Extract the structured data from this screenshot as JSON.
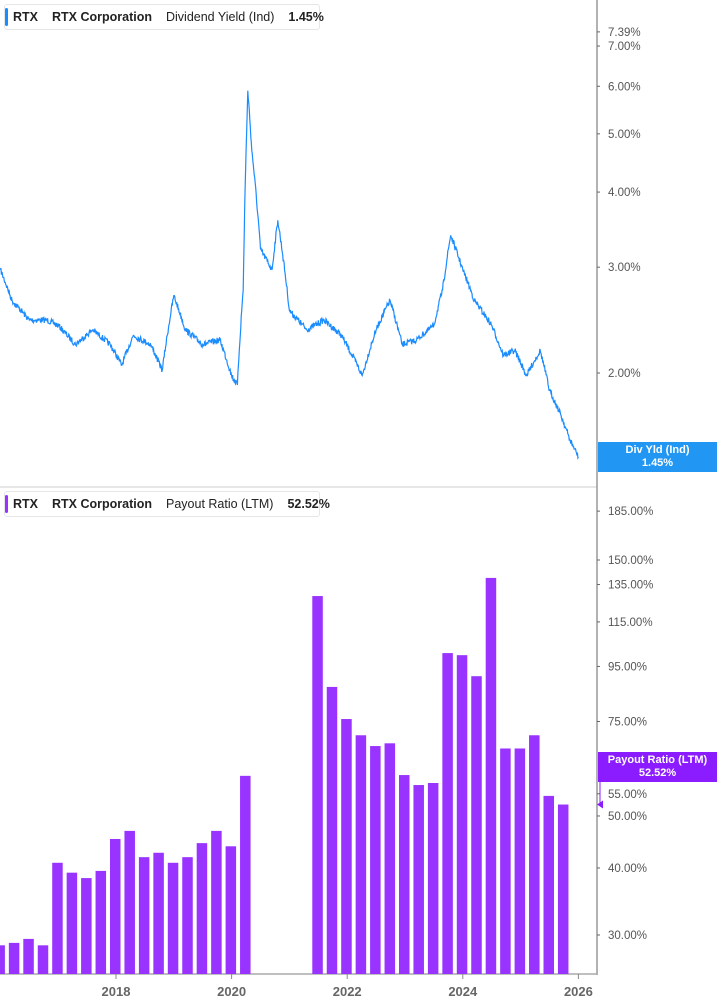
{
  "colors": {
    "yield": "#1a8cff",
    "payout": "#9933ff",
    "yield_tag": "#2196f3",
    "payout_tag": "#8a1cff"
  },
  "chart_data": [
    {
      "type": "line",
      "legend": {
        "ticker": "RTX",
        "company": "RTX Corporation",
        "metric": "Dividend Yield (Ind)",
        "value": "1.45%"
      },
      "tag": {
        "label": "Div Yld (Ind)",
        "value": "1.45%"
      },
      "y_scale": "log",
      "ylim": [
        1.4,
        7.6
      ],
      "yticks": [
        "7.39%",
        "7.00%",
        "6.00%",
        "5.00%",
        "4.00%",
        "3.00%",
        "2.00%"
      ],
      "ytick_values": [
        7.39,
        7.0,
        6.0,
        5.0,
        4.0,
        3.0,
        2.0
      ],
      "x": [
        2016.0,
        2016.2,
        2016.5,
        2016.8,
        2017.0,
        2017.3,
        2017.6,
        2017.9,
        2018.1,
        2018.3,
        2018.6,
        2018.8,
        2019.0,
        2019.2,
        2019.5,
        2019.8,
        2020.0,
        2020.1,
        2020.2,
        2020.26,
        2020.28,
        2020.35,
        2020.5,
        2020.7,
        2020.8,
        2021.0,
        2021.3,
        2021.6,
        2021.9,
        2022.26,
        2022.5,
        2022.74,
        2022.95,
        2023.2,
        2023.5,
        2023.65,
        2023.79,
        2024.0,
        2024.2,
        2024.5,
        2024.7,
        2024.9,
        2025.1,
        2025.34,
        2025.5,
        2025.7,
        2025.85,
        2026.0
      ],
      "values": [
        2.97,
        2.64,
        2.45,
        2.45,
        2.4,
        2.23,
        2.36,
        2.23,
        2.06,
        2.31,
        2.23,
        2.02,
        2.69,
        2.36,
        2.23,
        2.27,
        1.98,
        1.91,
        2.75,
        5.0,
        5.9,
        4.69,
        3.21,
        2.97,
        3.59,
        2.54,
        2.36,
        2.45,
        2.31,
        1.98,
        2.36,
        2.64,
        2.23,
        2.27,
        2.4,
        2.75,
        3.39,
        2.97,
        2.64,
        2.4,
        2.14,
        2.18,
        1.98,
        2.18,
        1.87,
        1.7,
        1.55,
        1.45
      ]
    },
    {
      "type": "bar",
      "legend": {
        "ticker": "RTX",
        "company": "RTX Corporation",
        "metric": "Payout Ratio (LTM)",
        "value": "52.52%"
      },
      "tag": {
        "label": "Payout Ratio (LTM)",
        "value": "52.52%"
      },
      "y_scale": "log",
      "ylim": [
        25,
        205
      ],
      "yticks": [
        "185.00%",
        "150.00%",
        "135.00%",
        "115.00%",
        "95.00%",
        "75.00%",
        "55.00%",
        "50.00%",
        "40.00%",
        "30.00%"
      ],
      "ytick_values": [
        185,
        150,
        135,
        115,
        95,
        75,
        55,
        50,
        40,
        30
      ],
      "xticks": [
        "2018",
        "2020",
        "2022",
        "2024",
        "2026"
      ],
      "categories": [
        "2015-12",
        "2016-03",
        "2016-06",
        "2016-09",
        "2016-12",
        "2017-03",
        "2017-06",
        "2017-09",
        "2017-12",
        "2018-03",
        "2018-06",
        "2018-09",
        "2018-12",
        "2019-03",
        "2019-06",
        "2019-09",
        "2019-12",
        "2020-03",
        "2021-06",
        "2021-09",
        "2021-12",
        "2022-03",
        "2022-06",
        "2022-09",
        "2022-12",
        "2023-03",
        "2023-06",
        "2023-09",
        "2023-12",
        "2024-03",
        "2024-06",
        "2024-09",
        "2024-12",
        "2025-03",
        "2025-06",
        "2025-09"
      ],
      "values": [
        28.7,
        29.0,
        29.5,
        28.7,
        40.9,
        39.2,
        38.3,
        39.5,
        45.3,
        46.9,
        41.9,
        42.7,
        40.9,
        41.9,
        44.5,
        46.9,
        43.9,
        59.4,
        128.5,
        87.0,
        75.8,
        70.7,
        67.5,
        68.3,
        59.6,
        57.1,
        57.6,
        100.6,
        99.7,
        91.1,
        138.9,
        66.8,
        66.8,
        70.7,
        54.5,
        52.52
      ]
    }
  ]
}
